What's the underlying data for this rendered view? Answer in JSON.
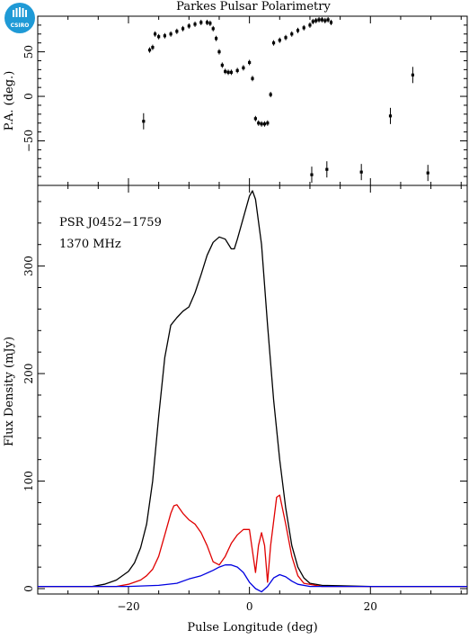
{
  "title": "Parkes Pulsar Polarimetry",
  "logo": {
    "text": "CSIRO",
    "color": "#1f9ad6"
  },
  "colors": {
    "total": "#000000",
    "linear": "#e00000",
    "circular": "#0000e0"
  },
  "chart_data": [
    {
      "type": "scatter",
      "panel": "top",
      "ylabel": "P.A. (deg.)",
      "xlim": [
        -35,
        36
      ],
      "ylim": [
        -100,
        90
      ],
      "yticks": [
        -50,
        0,
        50
      ],
      "points": [
        [
          -17.5,
          -28
        ],
        [
          -16.5,
          52
        ],
        [
          -16.0,
          55
        ],
        [
          -15.6,
          70
        ],
        [
          -15,
          67
        ],
        [
          -14,
          68
        ],
        [
          -13,
          70
        ],
        [
          -12,
          73
        ],
        [
          -11,
          76
        ],
        [
          -10,
          79
        ],
        [
          -9,
          81
        ],
        [
          -8,
          83
        ],
        [
          -7,
          83
        ],
        [
          -6.5,
          82
        ],
        [
          -6,
          76
        ],
        [
          -5.5,
          65
        ],
        [
          -5,
          50
        ],
        [
          -4.5,
          35
        ],
        [
          -4,
          28
        ],
        [
          -3.5,
          27
        ],
        [
          -3,
          27
        ],
        [
          -2,
          29
        ],
        [
          -1,
          32
        ],
        [
          0,
          38
        ],
        [
          0.5,
          20
        ],
        [
          1,
          -25
        ],
        [
          1.5,
          -30
        ],
        [
          2,
          -31
        ],
        [
          2.5,
          -31
        ],
        [
          3,
          -30
        ],
        [
          3.5,
          2
        ],
        [
          4,
          60
        ],
        [
          5,
          63
        ],
        [
          6,
          66
        ],
        [
          7,
          70
        ],
        [
          8,
          74
        ],
        [
          9,
          77
        ],
        [
          10,
          80
        ],
        [
          10.5,
          84
        ],
        [
          11,
          85
        ],
        [
          11.5,
          86
        ],
        [
          12,
          86
        ],
        [
          12.5,
          85
        ],
        [
          13,
          86
        ],
        [
          13.5,
          83
        ],
        [
          10.3,
          -88
        ],
        [
          12.8,
          -82
        ],
        [
          18.5,
          -85
        ],
        [
          23.3,
          -22
        ],
        [
          27.0,
          24
        ],
        [
          29.5,
          -86
        ]
      ]
    },
    {
      "type": "line",
      "panel": "bottom",
      "xlabel": "Pulse Longitude (deg)",
      "ylabel": "Flux Density (mJy)",
      "xlim": [
        -35,
        36
      ],
      "ylim": [
        -5,
        375
      ],
      "xticks": [
        -20,
        0,
        20
      ],
      "yticks": [
        0,
        100,
        200,
        300
      ],
      "annotations": [
        "PSR J0452−1759",
        "1370 MHz"
      ],
      "series": [
        {
          "key": "total",
          "points": [
            [
              -35,
              2
            ],
            [
              -30,
              2
            ],
            [
              -26,
              2
            ],
            [
              -24,
              4
            ],
            [
              -22,
              8
            ],
            [
              -20,
              16
            ],
            [
              -19,
              24
            ],
            [
              -18,
              38
            ],
            [
              -17,
              60
            ],
            [
              -16,
              100
            ],
            [
              -15,
              160
            ],
            [
              -14,
              215
            ],
            [
              -13,
              245
            ],
            [
              -12,
              252
            ],
            [
              -11,
              258
            ],
            [
              -10,
              262
            ],
            [
              -9,
              275
            ],
            [
              -8,
              292
            ],
            [
              -7,
              310
            ],
            [
              -6,
              322
            ],
            [
              -5,
              327
            ],
            [
              -4,
              325
            ],
            [
              -3,
              316
            ],
            [
              -2.5,
              316
            ],
            [
              -2,
              325
            ],
            [
              -1,
              345
            ],
            [
              0,
              365
            ],
            [
              0.5,
              370
            ],
            [
              1,
              362
            ],
            [
              2,
              320
            ],
            [
              3,
              245
            ],
            [
              4,
              175
            ],
            [
              5,
              120
            ],
            [
              6,
              75
            ],
            [
              7,
              40
            ],
            [
              8,
              20
            ],
            [
              9,
              10
            ],
            [
              10,
              5
            ],
            [
              12,
              3
            ],
            [
              20,
              2
            ],
            [
              36,
              2
            ]
          ]
        },
        {
          "key": "linear",
          "points": [
            [
              -35,
              2
            ],
            [
              -22,
              2
            ],
            [
              -20,
              4
            ],
            [
              -18,
              8
            ],
            [
              -17,
              12
            ],
            [
              -16,
              18
            ],
            [
              -15,
              30
            ],
            [
              -14,
              50
            ],
            [
              -13,
              70
            ],
            [
              -12.5,
              77
            ],
            [
              -12,
              78
            ],
            [
              -11,
              70
            ],
            [
              -10,
              64
            ],
            [
              -9,
              60
            ],
            [
              -8,
              52
            ],
            [
              -7,
              40
            ],
            [
              -6,
              25
            ],
            [
              -5,
              22
            ],
            [
              -4,
              30
            ],
            [
              -3,
              42
            ],
            [
              -2,
              50
            ],
            [
              -1,
              55
            ],
            [
              0,
              55
            ],
            [
              0.5,
              35
            ],
            [
              1,
              15
            ],
            [
              1.5,
              40
            ],
            [
              2,
              52
            ],
            [
              2.5,
              40
            ],
            [
              3,
              6
            ],
            [
              3.5,
              40
            ],
            [
              4.5,
              85
            ],
            [
              5,
              87
            ],
            [
              6,
              60
            ],
            [
              7,
              30
            ],
            [
              8,
              12
            ],
            [
              9,
              5
            ],
            [
              12,
              2
            ],
            [
              36,
              2
            ]
          ]
        },
        {
          "key": "circular",
          "points": [
            [
              -35,
              2
            ],
            [
              -20,
              2
            ],
            [
              -15,
              3
            ],
            [
              -12,
              5
            ],
            [
              -10,
              9
            ],
            [
              -8,
              12
            ],
            [
              -6,
              17
            ],
            [
              -5,
              20
            ],
            [
              -4,
              22
            ],
            [
              -3,
              22
            ],
            [
              -2,
              20
            ],
            [
              -1,
              15
            ],
            [
              0,
              6
            ],
            [
              1,
              0
            ],
            [
              2,
              -3
            ],
            [
              3,
              2
            ],
            [
              4,
              10
            ],
            [
              5,
              13
            ],
            [
              6,
              11
            ],
            [
              7,
              7
            ],
            [
              8,
              4
            ],
            [
              10,
              2
            ],
            [
              36,
              2
            ]
          ]
        }
      ]
    }
  ]
}
